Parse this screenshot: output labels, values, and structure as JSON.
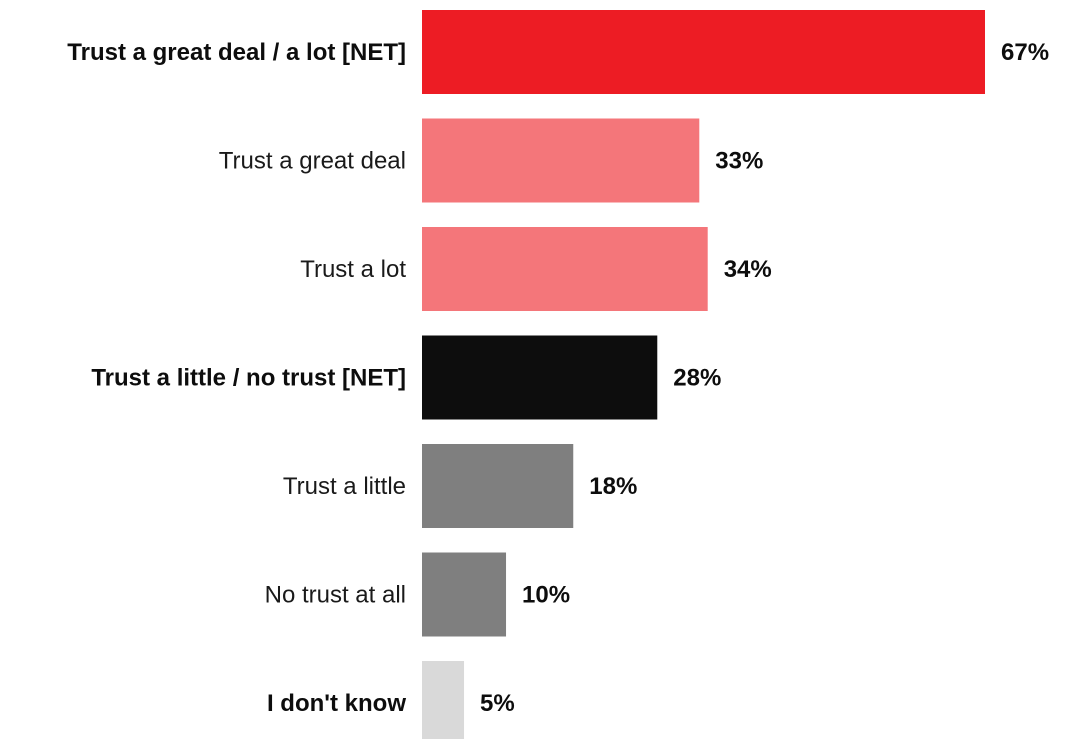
{
  "chart_data": {
    "type": "bar",
    "orientation": "horizontal",
    "categories": [
      "Trust a great deal / a lot [NET]",
      "Trust a great deal",
      "Trust a lot",
      "Trust a little / no trust [NET]",
      "Trust a little",
      "No trust at all",
      "I don't know"
    ],
    "values": [
      67,
      33,
      34,
      28,
      18,
      10,
      5
    ],
    "value_labels": [
      "67%",
      "33%",
      "34%",
      "28%",
      "18%",
      "10%",
      "5%"
    ],
    "bold_categories": [
      true,
      false,
      false,
      true,
      false,
      false,
      true
    ],
    "bar_colors": [
      "#ed1c24",
      "#f4767a",
      "#f4767a",
      "#0d0d0d",
      "#7f7f7f",
      "#7f7f7f",
      "#d9d9d9"
    ],
    "unit": "%",
    "xlim": [
      0,
      67
    ],
    "grid": false,
    "legend": false,
    "title": "",
    "xlabel": "",
    "ylabel": ""
  }
}
